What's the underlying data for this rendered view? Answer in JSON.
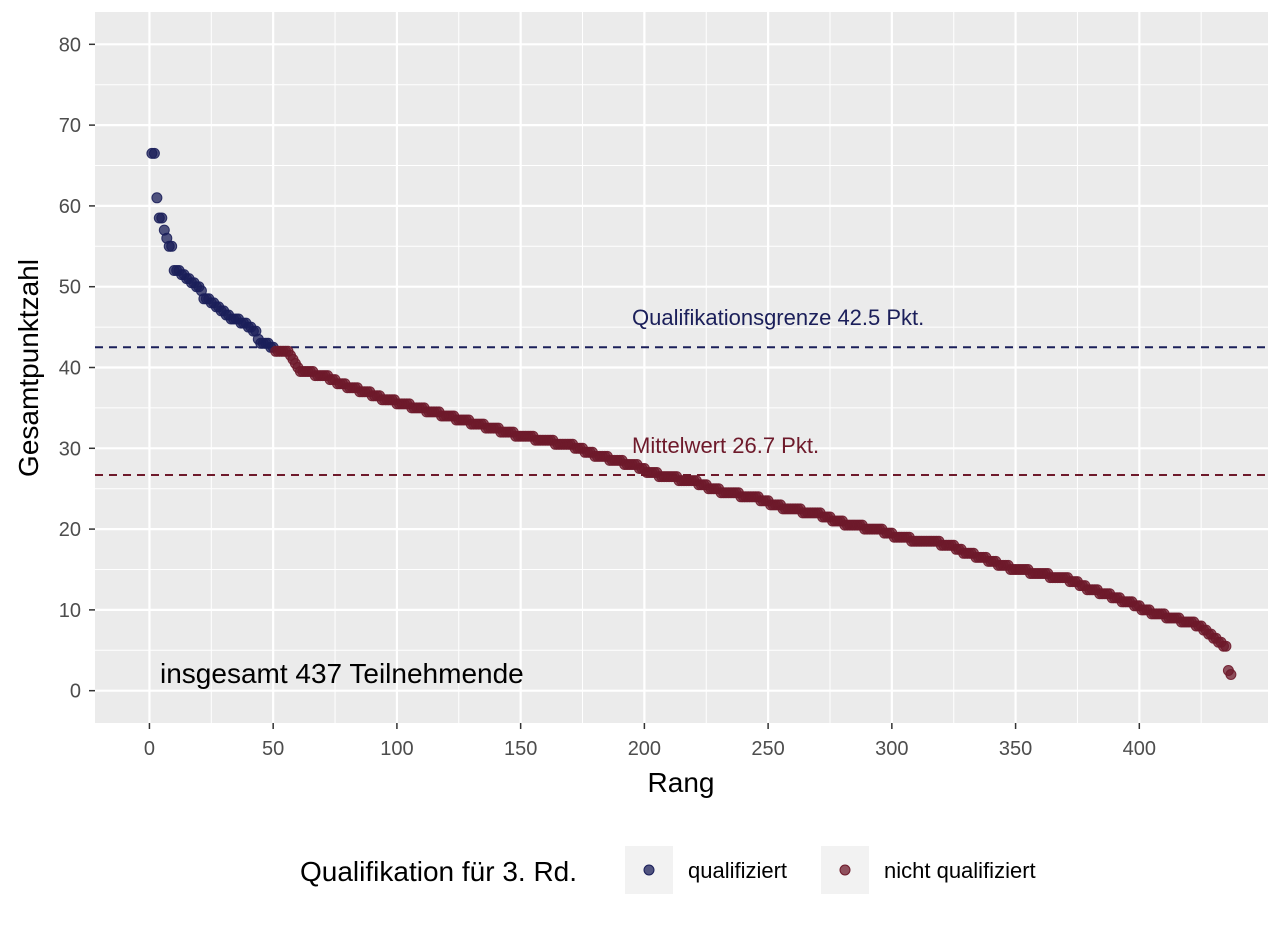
{
  "chart_data": {
    "type": "scatter",
    "xlabel": "Rang",
    "ylabel": "Gesamtpunktzahl",
    "xlim": [
      -22,
      452
    ],
    "ylim": [
      -4,
      84
    ],
    "x_ticks": [
      0,
      50,
      100,
      150,
      200,
      250,
      300,
      350,
      400
    ],
    "y_ticks": [
      0,
      10,
      20,
      30,
      40,
      50,
      60,
      70,
      80
    ],
    "grid": true,
    "total_participants": 437,
    "qualification_limit": 42.5,
    "mean": 26.7,
    "annotations": {
      "limit_text": "Qualifikationsgrenze 42.5 Pkt.",
      "mean_text": "Mittelwert 26.7 Pkt.",
      "total_text": "insgesamt 437 Teilnehmende"
    },
    "colors": {
      "qualified": "#1b1f5a",
      "not_qualified": "#6e1a2b",
      "panel": "#ebebeb",
      "grid": "#ffffff"
    },
    "legend": {
      "title": "Qualifikation für 3. Rd.",
      "position": "bottom",
      "entries": [
        "qualifiziert",
        "nicht qualifiziert"
      ]
    },
    "series": [
      {
        "name": "qualifiziert",
        "points": [
          [
            1,
            66.5
          ],
          [
            2,
            66.5
          ],
          [
            3,
            61
          ],
          [
            4,
            58.5
          ],
          [
            5,
            58.5
          ],
          [
            6,
            57
          ],
          [
            7,
            56
          ],
          [
            8,
            55
          ],
          [
            9,
            55
          ],
          [
            10,
            52
          ],
          [
            11,
            52
          ],
          [
            12,
            52
          ],
          [
            13,
            51.5
          ],
          [
            14,
            51.5
          ],
          [
            15,
            51
          ],
          [
            16,
            51
          ],
          [
            17,
            50.5
          ],
          [
            18,
            50.5
          ],
          [
            19,
            50
          ],
          [
            20,
            50
          ],
          [
            21,
            49.5
          ],
          [
            22,
            48.5
          ],
          [
            23,
            48.5
          ],
          [
            24,
            48.5
          ],
          [
            25,
            48
          ],
          [
            26,
            48
          ],
          [
            27,
            47.5
          ],
          [
            28,
            47.5
          ],
          [
            29,
            47
          ],
          [
            30,
            47
          ],
          [
            31,
            46.5
          ],
          [
            32,
            46.5
          ],
          [
            33,
            46
          ],
          [
            34,
            46
          ],
          [
            35,
            46
          ],
          [
            36,
            46
          ],
          [
            37,
            45.5
          ],
          [
            38,
            45.5
          ],
          [
            39,
            45.5
          ],
          [
            40,
            45
          ],
          [
            41,
            45
          ],
          [
            42,
            44.5
          ],
          [
            43,
            44.5
          ],
          [
            44,
            43.5
          ],
          [
            45,
            43
          ],
          [
            46,
            43
          ],
          [
            47,
            43
          ],
          [
            48,
            43
          ],
          [
            49,
            42.5
          ],
          [
            50,
            42.5
          ]
        ]
      },
      {
        "name": "nicht qualifiziert",
        "segments": [
          {
            "from": 51,
            "to": 56,
            "y_start": 42,
            "y_end": 42
          },
          {
            "from": 57,
            "to": 60,
            "y_start": 41.5,
            "y_end": 40
          },
          {
            "from": 61,
            "to": 72,
            "y_start": 39.5,
            "y_end": 39
          },
          {
            "from": 73,
            "to": 96,
            "y_start": 38.5,
            "y_end": 36
          },
          {
            "from": 97,
            "to": 150,
            "y_start": 36,
            "y_end": 31.5
          },
          {
            "from": 151,
            "to": 175,
            "y_start": 31.5,
            "y_end": 30
          },
          {
            "from": 176,
            "to": 200,
            "y_start": 29.5,
            "y_end": 27.5
          },
          {
            "from": 201,
            "to": 225,
            "y_start": 27,
            "y_end": 25.5
          },
          {
            "from": 226,
            "to": 250,
            "y_start": 25,
            "y_end": 23.5
          },
          {
            "from": 251,
            "to": 275,
            "y_start": 23,
            "y_end": 21.5
          },
          {
            "from": 276,
            "to": 300,
            "y_start": 21,
            "y_end": 19.5
          },
          {
            "from": 301,
            "to": 325,
            "y_start": 19,
            "y_end": 18
          },
          {
            "from": 326,
            "to": 350,
            "y_start": 17.5,
            "y_end": 15
          },
          {
            "from": 351,
            "to": 375,
            "y_start": 15,
            "y_end": 13.5
          },
          {
            "from": 376,
            "to": 400,
            "y_start": 13,
            "y_end": 10.5
          },
          {
            "from": 401,
            "to": 425,
            "y_start": 10,
            "y_end": 8
          },
          {
            "from": 426,
            "to": 434,
            "y_start": 7.5,
            "y_end": 5.5
          }
        ],
        "points": [
          [
            435,
            5.5
          ],
          [
            436,
            2.5
          ],
          [
            437,
            2
          ]
        ]
      }
    ]
  }
}
